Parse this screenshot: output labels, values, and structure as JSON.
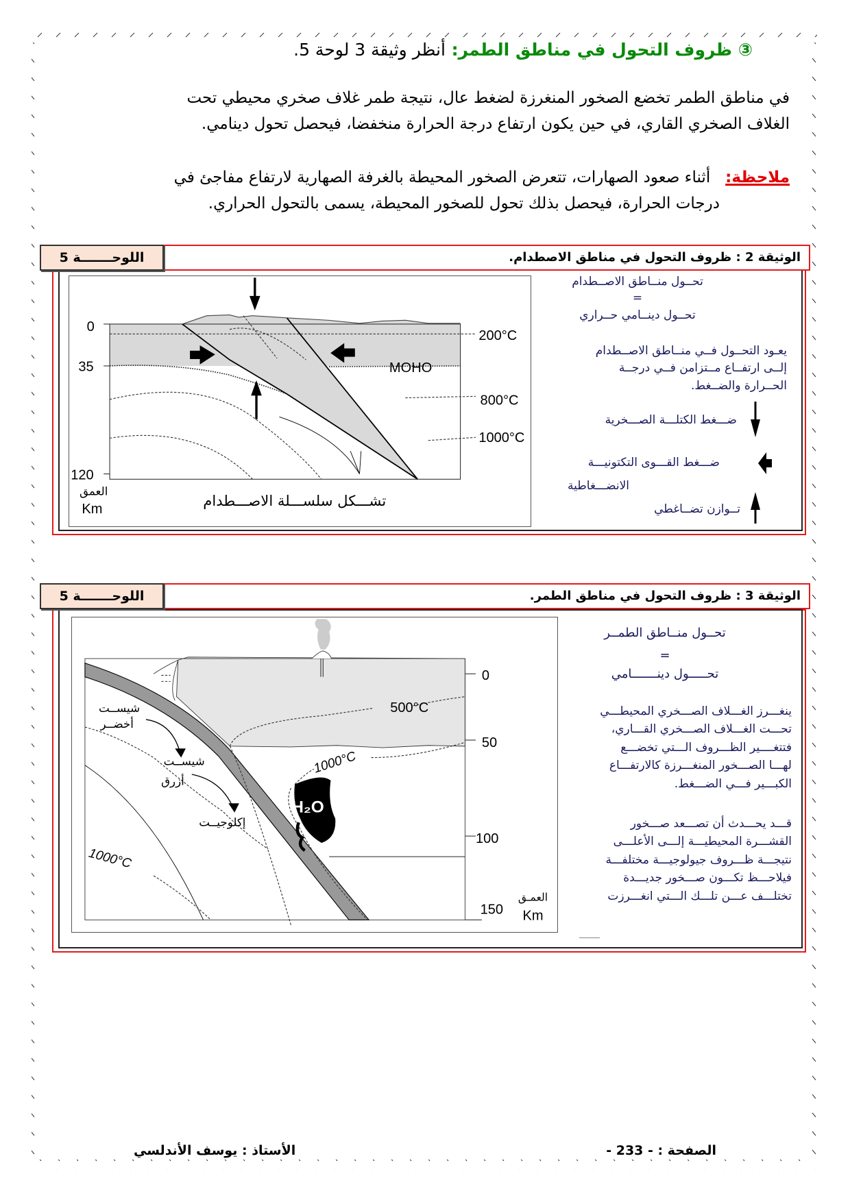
{
  "section": {
    "number": "③",
    "title": "ظروف التحول في مناطق الطمر:",
    "reference": "أنظر وثيقة 3 لوحة 5."
  },
  "paragraph": [
    "في مناطق الطمر تخضع الصخور المنغرزة لضغط عال، نتيجة طمر غلاف صخري محيطي تحت",
    "الغلاف الصخري القاري، في حين يكون ارتفاع درجة الحرارة منخفضا، فيحصل تحول دينامي."
  ],
  "note": {
    "label": "ملاحظة:",
    "lines": [
      "أثناء صعود الصهارات، تتعرض الصخور المحيطة بالغرفة الصهارية لارتفاع مفاجئ في",
      "درجات الحرارة، فيحصل بذلك تحول للصخور المحيطة، يسمى بالتحول الحراري."
    ]
  },
  "doc2": {
    "panel_label": "اللوحـــــــة 5",
    "title": "الوثيقة 2 : ظروف التحول في مناطق الاصطدام.",
    "diagram": {
      "depth_ticks": [
        "0",
        "35",
        "120"
      ],
      "depth_label": "العمق",
      "depth_unit": "Km",
      "isotherms": [
        "200°C",
        "800°C",
        "1000°C"
      ],
      "moho": "MOHO",
      "caption": "تشـــكل سلســـلة الاصـــطدام"
    },
    "side": {
      "eq_top": "تحــول منــاطق الاصــطدام",
      "eq_sign": "=",
      "eq_bottom": "تحــول دينــامي حــراري",
      "explain": [
        "يعـود التحــول فــي منــاطق الاصــطدام",
        "إلــى ارتفــاع مــتزامن فــي درجــة",
        "الحــرارة والضــغط."
      ],
      "legend_down": "ضـــغط الكتلـــة الصـــخرية",
      "legend_converge": [
        "ضـــغط القـــوى التكتونيـــة",
        "الانضـــغاطية"
      ],
      "legend_up": "تــوازن تضــاغطي"
    }
  },
  "doc3": {
    "panel_label": "اللوحـــــــة 5",
    "title": "الوثيقة 3 : ظروف التحول في مناطق الطمر.",
    "diagram": {
      "depth_ticks": [
        "0",
        "50",
        "100",
        "150"
      ],
      "depth_label": "العمـق",
      "depth_unit": "Km",
      "isotherm_500": "500°C",
      "isotherm_1000_right": "1000°C",
      "isotherm_1000_left": "1000°C",
      "water": "H₂O",
      "rock_green_schist": [
        "شيســت",
        "أخضــر"
      ],
      "rock_blue_schist": [
        "شيســت",
        "أزرق"
      ],
      "rock_eclogite": "إكلوجيــت"
    },
    "side": {
      "eq_top": "تحــول منــاطق الطمــر",
      "eq_sign": "=",
      "eq_bottom": "تحـــــول دينـــــــامي",
      "explain1": [
        "ينغـــرز الغـــلاف الصـــخري المحيطـــي",
        "تحـــت الغـــلاف الصـــخري القـــاري،",
        "فتتغــــير الظـــروف الـــتي تخضـــع",
        "لهـــا الصـــخور المنغـــرزة كالارتفـــاع",
        "الكبـــير فـــي الضـــغط."
      ],
      "explain2": [
        "قـــد يحـــدث أن تصـــعد صـــخور",
        "القشـــرة المحيطيـــة إلـــى الأعلـــى",
        "نتيجـــة ظـــروف جيولوجيـــة مختلفـــة",
        "فيلاحـــظ تكـــون صـــخور جديـــدة",
        "تختلـــف عـــن تلـــك الـــتي انغـــرزت"
      ]
    }
  },
  "footer": {
    "page": "الصفحة : - 233 -",
    "author": "الأستاذ : يوسف الأندلسي"
  },
  "colors": {
    "title_green": "#0a8a0a",
    "note_red": "#e00000",
    "frame_red": "#e31b1b",
    "panel_bg": "#fbe4d5",
    "side_text": "#1a1a5e",
    "crust_gray": "#d9d9d9"
  }
}
